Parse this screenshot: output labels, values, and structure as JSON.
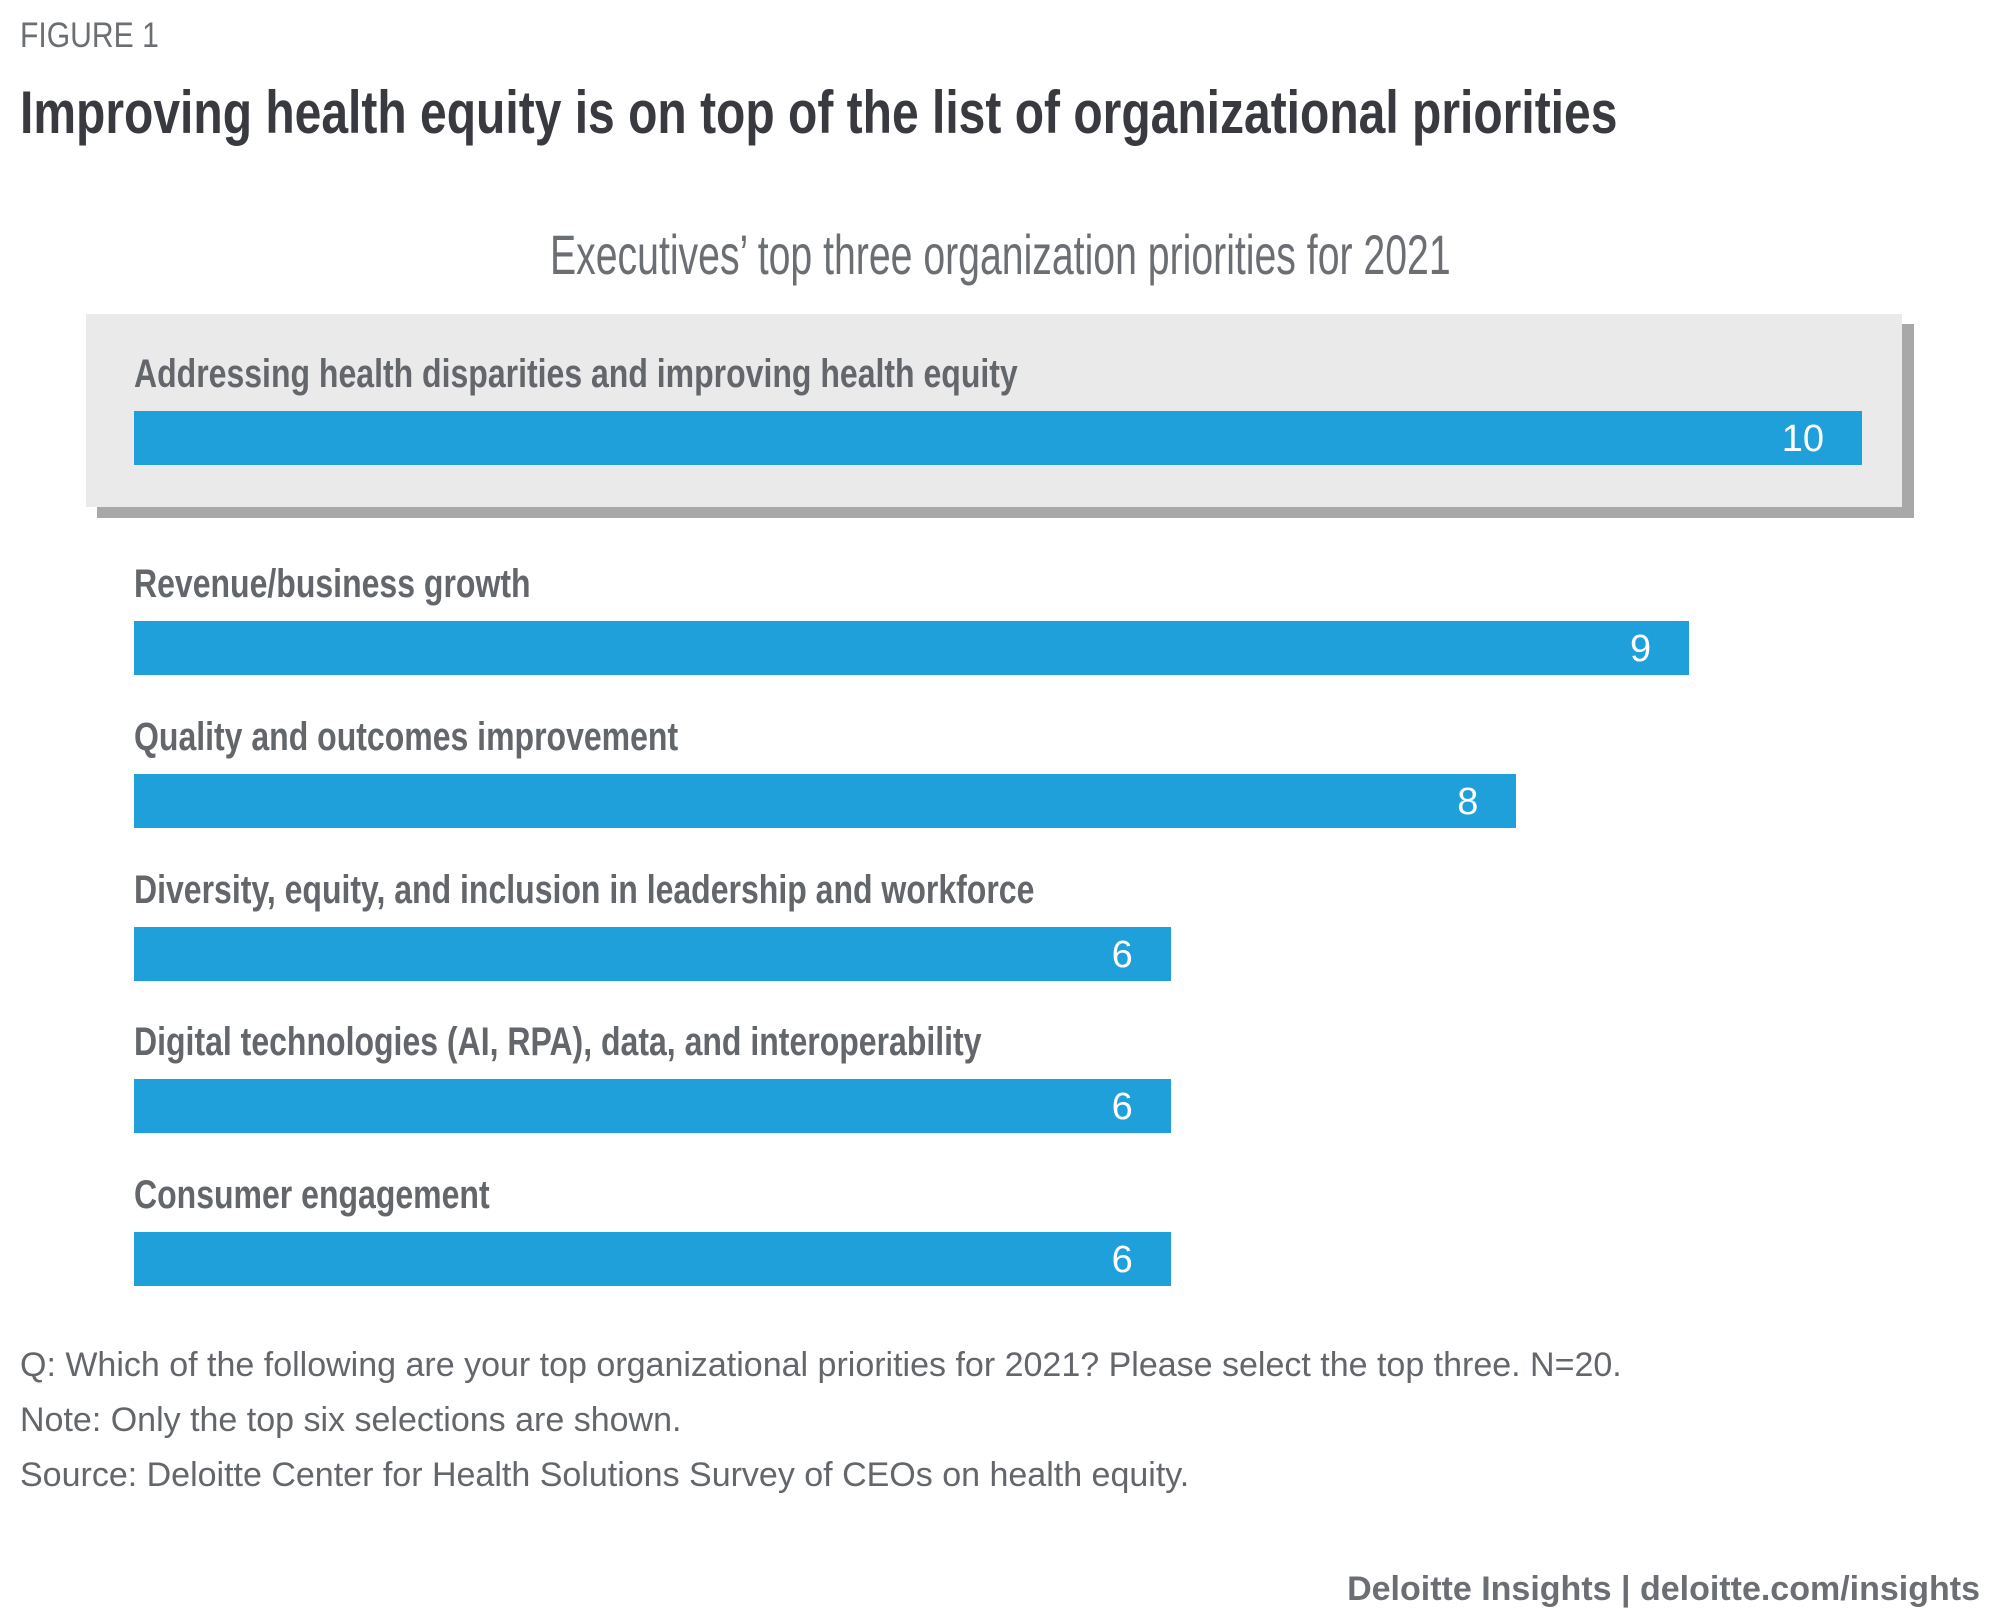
{
  "figure_label": "FIGURE 1",
  "title": "Improving health equity is on top of the list of organizational priorities",
  "chart_data": {
    "type": "bar",
    "orientation": "horizontal",
    "title": "Executives’ top three organization priorities for 2021",
    "xlabel": "",
    "ylabel": "",
    "xlim": [
      0,
      10
    ],
    "grid": false,
    "categories": [
      "Addressing health disparities and improving health equity",
      "Revenue/business growth",
      "Quality and outcomes improvement",
      "Diversity, equity, and inclusion in leadership and workforce",
      "Digital technologies (AI, RPA), data, and interoperability",
      "Consumer engagement"
    ],
    "values": [
      10,
      9,
      8,
      6,
      6,
      6
    ],
    "highlighted_category": "Addressing health disparities and improving health equity",
    "bar_color": "#20a0db"
  },
  "notes": {
    "question": "Q: Which of the following are your top organizational priorities for 2021? Please select the top three. N=20.",
    "note": "Note: Only the top six selections are shown.",
    "source": "Source: Deloitte Center for Health Solutions Survey of CEOs on health equity."
  },
  "footer": "Deloitte Insights | deloitte.com/insights"
}
